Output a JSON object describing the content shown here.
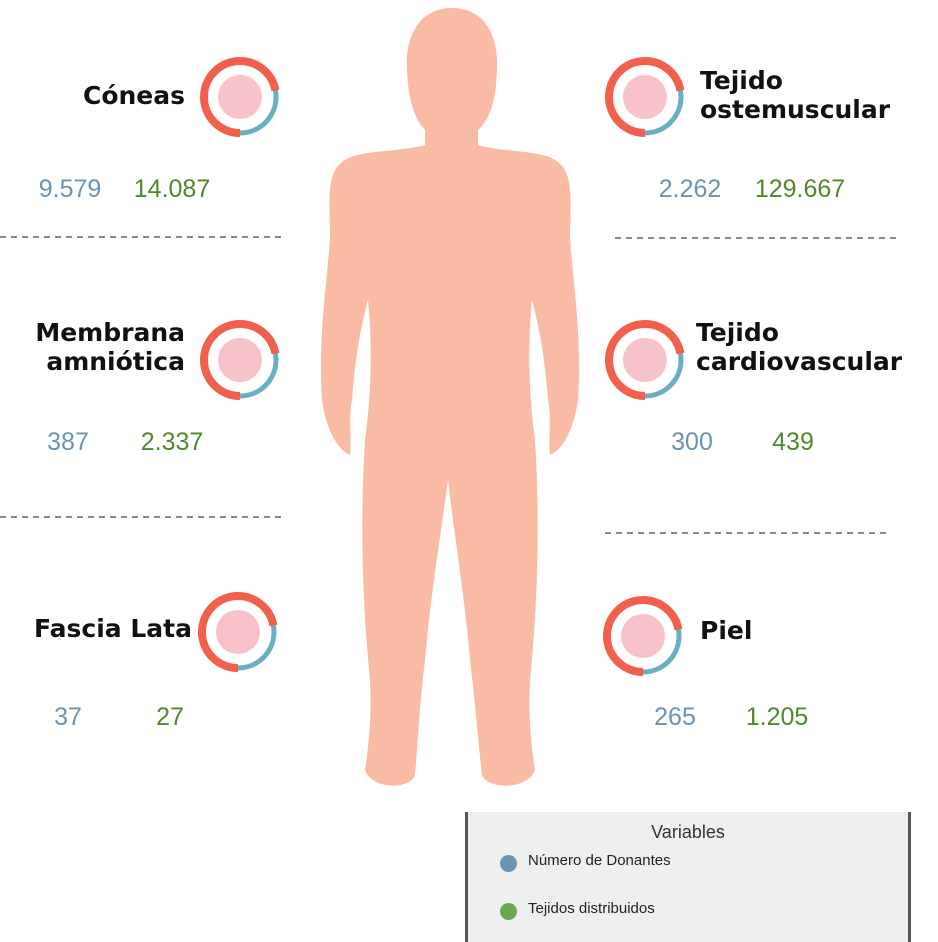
{
  "tissues": [
    {
      "name_lines": [
        "Cóneas"
      ],
      "donors": "9.579",
      "distributed": "14.087"
    },
    {
      "name_lines": [
        "Membrana",
        "amniótica"
      ],
      "donors": "387",
      "distributed": "2.337"
    },
    {
      "name_lines": [
        "Fascia Lata"
      ],
      "donors": "37",
      "distributed": "27"
    },
    {
      "name_lines": [
        "Tejido",
        "ostemuscular"
      ],
      "donors": "2.262",
      "distributed": "129.667"
    },
    {
      "name_lines": [
        "Tejido",
        "cardiovascular"
      ],
      "donors": "300",
      "distributed": "439"
    },
    {
      "name_lines": [
        "Piel"
      ],
      "donors": "265",
      "distributed": "1.205"
    }
  ],
  "legend": {
    "title": "Variables",
    "items": [
      {
        "label": "Número de Donantes",
        "color": "#6b93b4"
      },
      {
        "label": "Tejidos distribuidos",
        "color": "#6aa84f"
      }
    ]
  }
}
